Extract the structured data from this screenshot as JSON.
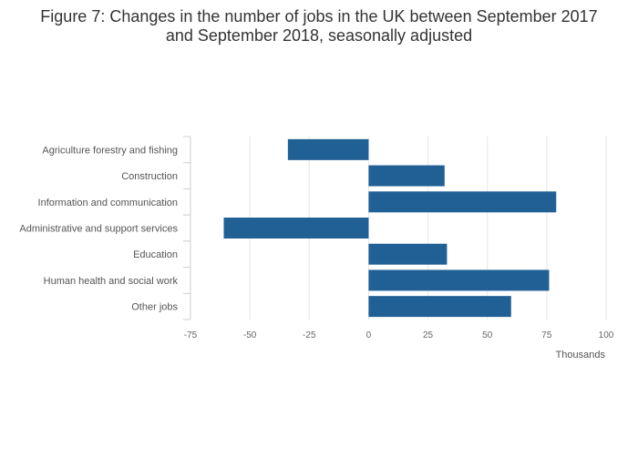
{
  "chart_data": {
    "type": "bar",
    "orientation": "horizontal",
    "title": "Figure 7: Changes in the number of jobs in the UK between September 2017 and September 2018, seasonally adjusted",
    "xlabel": "Thousands",
    "ylabel": "",
    "xlim": [
      -75,
      100
    ],
    "xticks": [
      -75,
      -50,
      -25,
      0,
      25,
      50,
      75,
      100
    ],
    "xtick_labels": [
      "-75",
      "-50",
      "-25",
      "0",
      "25",
      "50",
      "75",
      "100"
    ],
    "grid": true,
    "bar_color": "#206095",
    "categories": [
      "Agriculture forestry and fishing",
      "Construction",
      "Information and communication",
      "Administrative and support services",
      "Education",
      "Human health and social work",
      "Other jobs"
    ],
    "values": [
      -34,
      32,
      79,
      -61,
      33,
      76,
      60
    ]
  }
}
